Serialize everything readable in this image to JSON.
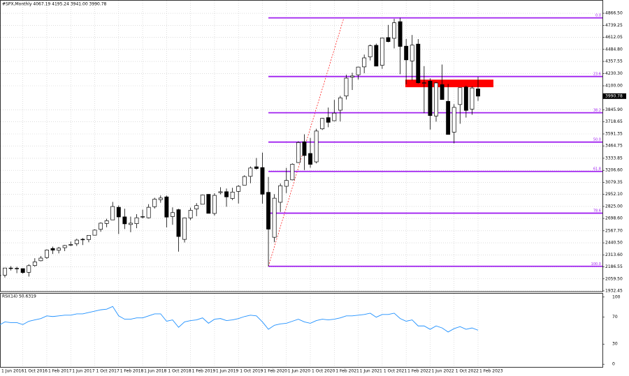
{
  "chart_data": {
    "type": "candlestick",
    "header": "#SPX,Monthly  4067.19 4195.24 3941.00 3990.78",
    "categories": [
      "1 Jun 2016",
      null,
      null,
      null,
      "1 Oct 2016",
      null,
      null,
      null,
      "1 Feb 2017",
      null,
      null,
      null,
      "1 Jun 2017",
      null,
      null,
      null,
      "1 Oct 2017",
      null,
      null,
      null,
      "1 Feb 2018",
      null,
      null,
      null,
      "1 Jun 2018",
      null,
      null,
      null,
      "1 Oct 2018",
      null,
      null,
      null,
      "1 Feb 2019",
      null,
      null,
      null,
      "1 Jun 2019",
      null,
      null,
      null,
      "1 Oct 2019",
      null,
      null,
      null,
      "1 Feb 2020",
      null,
      null,
      null,
      "1 Jun 2020",
      null,
      null,
      null,
      "1 Oct 2020",
      null,
      null,
      null,
      "1 Feb 2021",
      null,
      null,
      null,
      "1 Jun 2021",
      null,
      null,
      null,
      "1 Oct 2021",
      null,
      null,
      null,
      "1 Feb 2022",
      null,
      null,
      null,
      "1 Jun 2022",
      null,
      null,
      null,
      "1 Oct 2022",
      null,
      null,
      null,
      "1 Feb 2023"
    ],
    "open": [
      2093,
      2099,
      2174,
      2171,
      2168,
      2129,
      2200,
      2251,
      2285,
      2381,
      2362,
      2389,
      2415,
      2431,
      2478,
      2475,
      2521,
      2583,
      2645,
      2683,
      2816,
      2715,
      2634,
      2643,
      2718,
      2705,
      2822,
      2897,
      2926,
      2718,
      2791,
      2477,
      2703,
      2798,
      2848,
      2953,
      2751,
      2971,
      2981,
      2909,
      2984,
      3050,
      3143,
      3244,
      3236,
      2974,
      2499,
      2869,
      3038,
      3106,
      3289,
      3508,
      3385,
      3296,
      3645,
      3764,
      3731,
      3842,
      3992,
      4192,
      4216,
      4300,
      4406,
      4528,
      4317,
      4610,
      4602,
      4778,
      4519,
      4363,
      4541,
      4131,
      4149,
      3781,
      4113,
      3936,
      3610,
      3902,
      4087,
      3853,
      4067.19
    ],
    "high": [
      2120,
      2177,
      2194,
      2188,
      2169,
      2214,
      2278,
      2301,
      2372,
      2401,
      2398,
      2418,
      2454,
      2484,
      2491,
      2519,
      2582,
      2657,
      2695,
      2873,
      2836,
      2801,
      2718,
      2743,
      2791,
      2849,
      2917,
      2941,
      2940,
      2815,
      2800,
      2708,
      2813,
      2860,
      2950,
      2955,
      2965,
      3028,
      3014,
      3022,
      3050,
      3154,
      3248,
      3337,
      3394,
      3137,
      2955,
      3068,
      3233,
      3280,
      3514,
      3588,
      3549,
      3646,
      3760,
      3870,
      3951,
      3994,
      4218,
      4238,
      4302,
      4430,
      4537,
      4546,
      4608,
      4743,
      4809,
      4819,
      4595,
      4637,
      4594,
      4308,
      4178,
      4140,
      4325,
      4120,
      3906,
      4080,
      4101,
      4095,
      4195.24
    ],
    "low": [
      2025,
      2074,
      2148,
      2120,
      2114,
      2084,
      2188,
      2245,
      2271,
      2322,
      2329,
      2353,
      2405,
      2407,
      2417,
      2447,
      2520,
      2557,
      2605,
      2682,
      2533,
      2586,
      2553,
      2595,
      2698,
      2698,
      2803,
      2864,
      2603,
      2631,
      2347,
      2444,
      2681,
      2722,
      2848,
      2751,
      2729,
      2953,
      2822,
      2892,
      2856,
      3050,
      3070,
      3214,
      2855,
      2192,
      2447,
      2767,
      2966,
      3101,
      3284,
      3210,
      3234,
      3280,
      3633,
      3662,
      3726,
      3723,
      3955,
      4056,
      4165,
      4233,
      4368,
      4306,
      4279,
      4560,
      4495,
      4223,
      4115,
      4157,
      4124,
      3811,
      3637,
      3721,
      3955,
      3584,
      3492,
      3699,
      3764,
      3794,
      3941
    ],
    "close": [
      2099,
      2174,
      2171,
      2168,
      2126,
      2199,
      2239,
      2279,
      2364,
      2363,
      2384,
      2412,
      2423,
      2470,
      2472,
      2519,
      2575,
      2648,
      2674,
      2824,
      2714,
      2641,
      2648,
      2705,
      2718,
      2816,
      2902,
      2914,
      2712,
      2760,
      2507,
      2704,
      2784,
      2834,
      2946,
      2752,
      2942,
      2980,
      2926,
      2977,
      3038,
      3141,
      3231,
      3226,
      2954,
      2585,
      2912,
      3044,
      3100,
      3271,
      3500,
      3363,
      3270,
      3622,
      3756,
      3714,
      3811,
      3973,
      4181,
      4204,
      4298,
      4395,
      4523,
      4308,
      4605,
      4567,
      4766,
      4516,
      4374,
      4530,
      4132,
      4132,
      3785,
      4130,
      3955,
      3586,
      3872,
      4080,
      3840,
      4077,
      3990.78
    ],
    "current_price": 3990.78,
    "ylim": [
      1925,
      4970
    ],
    "yticks": [
      {
        "value": 4866.5,
        "label": "4866.50"
      },
      {
        "value": 4739.25,
        "label": "4739.25"
      },
      {
        "value": 4612.05,
        "label": "4612.05"
      },
      {
        "value": 4484.8,
        "label": "4484.80"
      },
      {
        "value": 4357.55,
        "label": "4357.55"
      },
      {
        "value": 4230.3,
        "label": "4230.30"
      },
      {
        "value": 4100,
        "label": "4100.00"
      },
      {
        "value": 3845.9,
        "label": "3845.90"
      },
      {
        "value": 3718.65,
        "label": "3718.65"
      },
      {
        "value": 3591.35,
        "label": "3591.35"
      },
      {
        "value": 3464.75,
        "label": "3464.75"
      },
      {
        "value": 3333.85,
        "label": "3333.85"
      },
      {
        "value": 3206.6,
        "label": "3206.60"
      },
      {
        "value": 3079.35,
        "label": "3079.35"
      },
      {
        "value": 2952.1,
        "label": "2952.10"
      },
      {
        "value": 2825,
        "label": "2825.00"
      },
      {
        "value": 2698.6,
        "label": "2698.60"
      },
      {
        "value": 2567.7,
        "label": "2567.70"
      },
      {
        "value": 2440.5,
        "label": "2440.50"
      },
      {
        "value": 2313.6,
        "label": "2313.60"
      },
      {
        "value": 2186.55,
        "label": "2186.55"
      },
      {
        "value": 2059.5,
        "label": "2059.50"
      },
      {
        "value": 1932.45,
        "label": "1932.45"
      }
    ],
    "grid": true,
    "fib_levels": [
      {
        "label": "0.0",
        "value": 4818
      },
      {
        "label": "23.6",
        "value": 4198
      },
      {
        "label": "38.2",
        "value": 3815
      },
      {
        "label": "50.0",
        "value": 3505
      },
      {
        "label": "61.8",
        "value": 3195
      },
      {
        "label": "78.6",
        "value": 2754
      },
      {
        "label": "100.0",
        "value": 2192
      }
    ],
    "fib_color": "#a020f0",
    "zone": {
      "from": 4085,
      "to": 4165,
      "color": "#ff0000"
    },
    "rsi": {
      "label": "RSI(14) 50.6319",
      "color": "#1e90ff",
      "values": [
        58,
        63,
        62,
        62,
        59,
        64,
        66,
        68,
        72,
        71,
        72,
        73,
        73,
        75,
        75,
        77,
        79,
        81,
        82,
        86,
        72,
        67,
        67,
        69,
        69,
        72,
        75,
        75,
        64,
        66,
        55,
        63,
        65,
        66,
        69,
        61,
        67,
        68,
        65,
        66,
        68,
        71,
        73,
        72,
        63,
        52,
        58,
        60,
        61,
        64,
        67,
        63,
        61,
        65,
        67,
        66,
        67,
        69,
        72,
        72,
        73,
        74,
        76,
        70,
        74,
        74,
        76,
        68,
        64,
        66,
        57,
        57,
        52,
        57,
        54,
        48,
        53,
        56,
        52,
        54,
        50.63
      ],
      "ylim": [
        -4,
        105
      ],
      "yticks": [
        0,
        30,
        70,
        100
      ]
    }
  }
}
